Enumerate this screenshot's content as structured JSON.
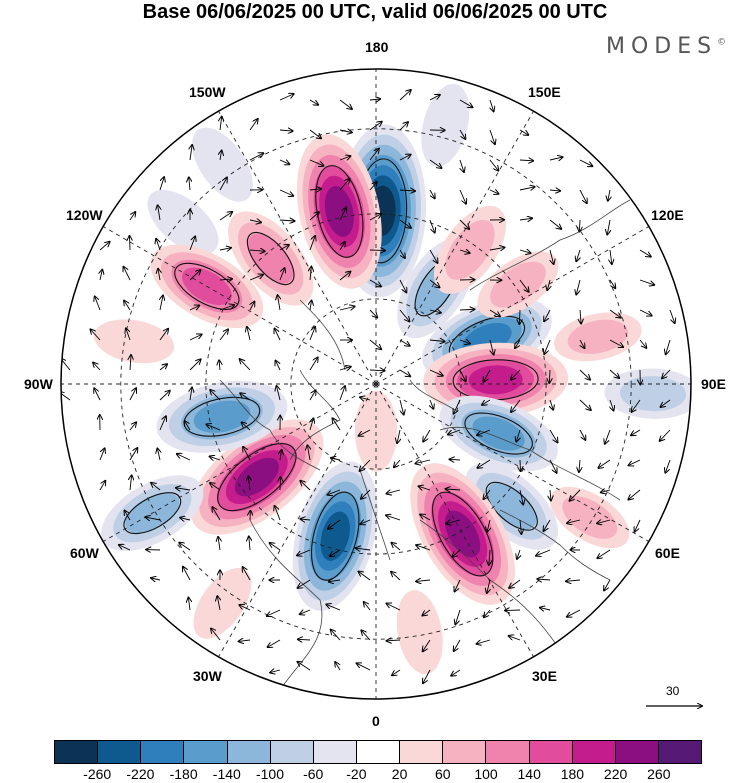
{
  "header": {
    "title": "Base 06/06/2025 00 UTC, valid 06/06/2025 00 UTC",
    "brand": "MODES",
    "brand_mark": "©"
  },
  "map": {
    "projection": "north polar stereographic",
    "longitude_labels": [
      {
        "text": "180",
        "lon": 180
      },
      {
        "text": "150E",
        "lon": 150
      },
      {
        "text": "120E",
        "lon": 120
      },
      {
        "text": "90E",
        "lon": 90
      },
      {
        "text": "60E",
        "lon": 60
      },
      {
        "text": "30E",
        "lon": 30
      },
      {
        "text": "0",
        "lon": 0
      },
      {
        "text": "30W",
        "lon": -30
      },
      {
        "text": "60W",
        "lon": -60
      },
      {
        "text": "90W",
        "lon": -90
      },
      {
        "text": "120W",
        "lon": -120
      },
      {
        "text": "150W",
        "lon": -150
      }
    ],
    "anomaly_centers": [
      {
        "lon": 178,
        "colat": 0.55,
        "value": -270
      },
      {
        "lon": -168,
        "colat": 0.56,
        "value": 230
      },
      {
        "lon": 148,
        "colat": 0.36,
        "value": -120
      },
      {
        "lon": 112,
        "colat": 0.38,
        "value": -180
      },
      {
        "lon": 92,
        "colat": 0.38,
        "value": 200
      },
      {
        "lon": 68,
        "colat": 0.42,
        "value": -150
      },
      {
        "lon": 48,
        "colat": 0.58,
        "value": -120
      },
      {
        "lon": 30,
        "colat": 0.55,
        "value": 230
      },
      {
        "lon": -15,
        "colat": 0.5,
        "value": -220
      },
      {
        "lon": -52,
        "colat": 0.48,
        "value": 230
      },
      {
        "lon": -78,
        "colat": 0.5,
        "value": -170
      },
      {
        "lon": -60,
        "colat": 0.82,
        "value": -120
      },
      {
        "lon": 145,
        "colat": 0.52,
        "value": 90
      },
      {
        "lon": 125,
        "colat": 0.55,
        "value": 70
      },
      {
        "lon": 102,
        "colat": 0.72,
        "value": 60
      },
      {
        "lon": 88,
        "colat": 0.88,
        "value": -80
      },
      {
        "lon": 58,
        "colat": 0.8,
        "value": 60
      },
      {
        "lon": 10,
        "colat": 0.8,
        "value": 50
      },
      {
        "lon": -35,
        "colat": 0.85,
        "value": 40
      },
      {
        "lon": -100,
        "colat": 0.78,
        "value": 40
      },
      {
        "lon": -130,
        "colat": 0.8,
        "value": -50
      },
      {
        "lon": -140,
        "colat": 0.52,
        "value": 120
      },
      {
        "lon": -120,
        "colat": 0.62,
        "value": 150
      },
      {
        "lon": -145,
        "colat": 0.85,
        "value": -50
      },
      {
        "lon": 165,
        "colat": 0.85,
        "value": -50
      },
      {
        "lon": 0,
        "colat": 0.15,
        "value": 40
      }
    ],
    "reference_vector": "30"
  },
  "colorbar": {
    "colors": [
      "#0b3355",
      "#0e5a8f",
      "#2f7fbc",
      "#5a9ccc",
      "#8db7da",
      "#bfd0e6",
      "#e3e4f0",
      "#ffffff",
      "#fbd8d8",
      "#f7b2c2",
      "#ef83ad",
      "#e24c9c",
      "#c41c8c",
      "#8b0f80",
      "#561a76"
    ],
    "ticks": [
      "-260",
      "-220",
      "-180",
      "-140",
      "-100",
      "-60",
      "-20",
      "20",
      "60",
      "100",
      "140",
      "180",
      "220",
      "260"
    ]
  }
}
